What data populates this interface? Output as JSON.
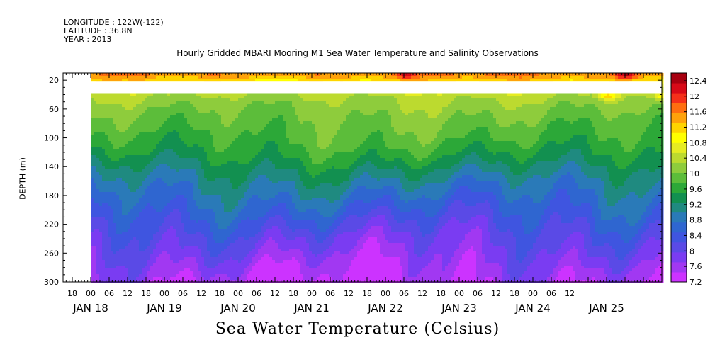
{
  "header": {
    "longitude": "LONGITUDE : 122W(-122)",
    "latitude": "LATITUDE : 36.8N",
    "year": "YEAR : 2013"
  },
  "chart_data": {
    "type": "heatmap",
    "title": "Hourly Gridded MBARI Mooring M1 Sea Water Temperature and Salinity Observations",
    "xlabel": "Sea Water Temperature (Celsius)",
    "ylabel": "DEPTH (m)",
    "x_hour_ticks": [
      "18",
      "00",
      "06",
      "12",
      "18",
      "00",
      "06",
      "12",
      "18",
      "00",
      "06",
      "12",
      "18",
      "00",
      "06",
      "12",
      "18",
      "00",
      "06",
      "12",
      "18",
      "00",
      "06",
      "12",
      "18",
      "00",
      "06",
      "12"
    ],
    "x_day_labels": [
      "JAN 18",
      "JAN 19",
      "JAN 20",
      "JAN 21",
      "JAN 22",
      "JAN 23",
      "JAN 24",
      "JAN 25"
    ],
    "xlim": [
      "2013-01-17 15:00",
      "2013-01-25 18:00"
    ],
    "data_start": "2013-01-18 00:00",
    "ylim": [
      300,
      10
    ],
    "y_reversed": true,
    "y_ticks": [
      20,
      60,
      100,
      140,
      180,
      220,
      260,
      300
    ],
    "missing_depth_band": [
      22,
      38
    ],
    "colorbar_ticks": [
      12.4,
      12,
      11.6,
      11.2,
      10.8,
      10.4,
      10,
      9.6,
      9.2,
      8.8,
      8.4,
      8,
      7.6,
      7.2
    ],
    "colorbar_range": [
      7.2,
      12.6
    ],
    "colors": [
      "#cc33ff",
      "#a138f2",
      "#7a3cf2",
      "#5a4ae6",
      "#3f55e0",
      "#2f66d0",
      "#2a7ab8",
      "#1f8a80",
      "#129050",
      "#2ca838",
      "#5cbd3a",
      "#8ecc3c",
      "#bcda2f",
      "#e6ec22",
      "#ffff00",
      "#ffd400",
      "#ffa20a",
      "#ff6e10",
      "#f5301a",
      "#d80a18",
      "#a80010"
    ],
    "profile_depths": [
      10,
      40,
      60,
      80,
      100,
      120,
      140,
      160,
      180,
      200,
      220,
      240,
      260,
      280,
      300
    ],
    "profile_temperature": [
      11.6,
      10.35,
      10.1,
      9.95,
      9.8,
      9.6,
      9.3,
      9.0,
      8.75,
      8.5,
      8.25,
      8.0,
      7.8,
      7.6,
      7.4
    ],
    "warm_events_top": [
      {
        "time": "2013-01-22 06:00",
        "temperature": 12.2
      },
      {
        "time": "2013-01-25 06:00",
        "temperature": 12.4
      }
    ],
    "warm_events_60m": [
      {
        "time": "2013-01-25 00:00",
        "temperature": 11.2
      },
      {
        "time": "2013-01-25 18:00",
        "temperature": 11.0
      }
    ]
  }
}
